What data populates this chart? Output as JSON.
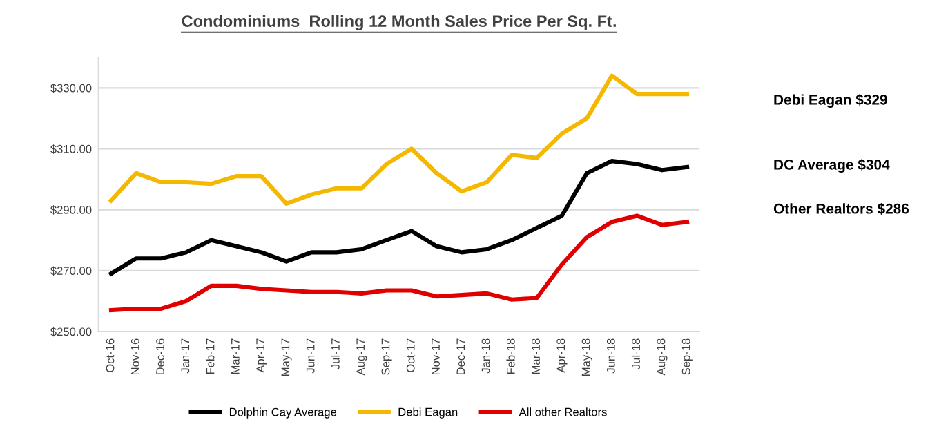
{
  "chart_data": {
    "type": "line",
    "title": "Condominiums  Rolling 12 Month Sales Price Per Sq. Ft.",
    "categories": [
      "Oct-16",
      "Nov-16",
      "Dec-16",
      "Jan-17",
      "Feb-17",
      "Mar-17",
      "Apr-17",
      "May-17",
      "Jun-17",
      "Jul-17",
      "Aug-17",
      "Sep-17",
      "Oct-17",
      "Nov-17",
      "Dec-17",
      "Jan-18",
      "Feb-18",
      "Mar-18",
      "Apr-18",
      "May-18",
      "Jun-18",
      "Jul-18",
      "Aug-18",
      "Sep-18"
    ],
    "series": [
      {
        "name": "Dolphin Cay Average",
        "color": "#000000",
        "values": [
          269,
          274,
          274,
          276,
          280,
          278,
          276,
          273,
          276,
          276,
          277,
          280,
          283,
          278,
          276,
          277,
          280,
          284,
          288,
          302,
          306,
          305,
          303,
          304
        ]
      },
      {
        "name": "Debi Eagan",
        "color": "#f5b800",
        "values": [
          293,
          302,
          299,
          299,
          298.5,
          301,
          301,
          292,
          295,
          297,
          297,
          305,
          310,
          302,
          296,
          299,
          308,
          307,
          315,
          320,
          334,
          328,
          328,
          328
        ]
      },
      {
        "name": "All other Realtors",
        "color": "#e00000",
        "values": [
          257,
          257.5,
          257.5,
          260,
          265,
          265,
          264,
          263.5,
          263,
          263,
          262.5,
          263.5,
          263.5,
          261.5,
          262,
          262.5,
          260.5,
          261,
          272,
          281,
          286,
          288,
          285,
          286
        ]
      }
    ],
    "ylim": [
      250,
      340
    ],
    "yticks": [
      {
        "value": 250,
        "label": "$250.00"
      },
      {
        "value": 270,
        "label": "$270.00"
      },
      {
        "value": 290,
        "label": "$290.00"
      },
      {
        "value": 310,
        "label": "$310.00"
      },
      {
        "value": 330,
        "label": "$330.00"
      }
    ],
    "grid": "y",
    "legend": "bottom",
    "marker": "none",
    "line_style": "solid",
    "annotations": [
      "Debi Eagan $329",
      "DC Average $304",
      "Other Realtors $286"
    ]
  }
}
